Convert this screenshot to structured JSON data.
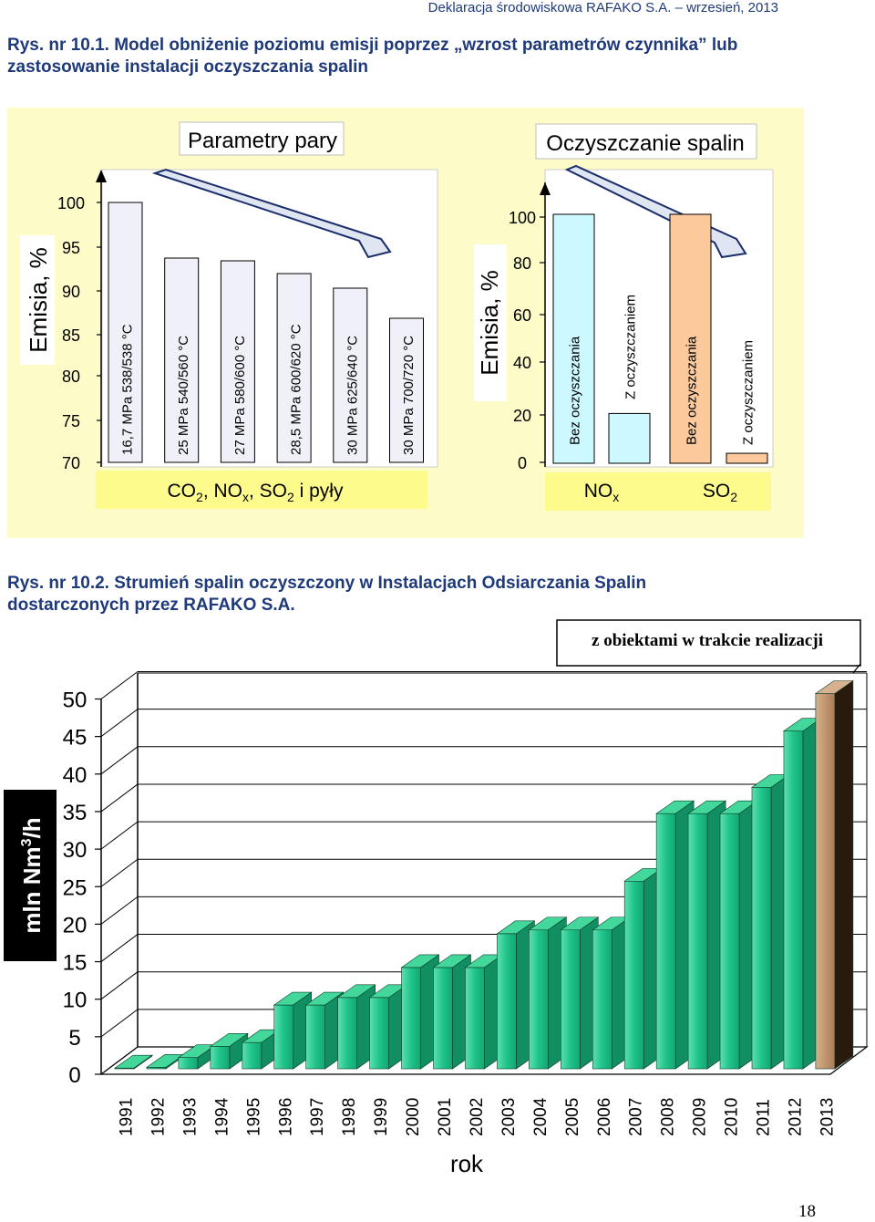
{
  "header": {
    "text": "Deklaracja środowiskowa RAFAKO S.A.  – wrzesień, 2013"
  },
  "figure1": {
    "caption_line1": "Rys. nr 10.1. Model obniżenie poziomu emisji poprzez „wzrost parametrów czynnika” lub",
    "caption_line2": "zastosowanie instalacji oczyszczania spalin",
    "left_title": "Parametry pary",
    "right_title": "Oczyszczanie spalin",
    "left_ylabel": "Emisia, %",
    "right_ylabel": "Emisia, %",
    "left_bottom_label": "CO2, NOx, SO2 i pyły",
    "right_group_labels": [
      "NOx",
      "SO2"
    ],
    "colors": {
      "panel": "#fdfbc8",
      "left_bar": "#eff0f8",
      "right_bar_a": "#ccf8ff",
      "right_bar_b": "#fcc99c",
      "label_band": "#fdfb8c"
    }
  },
  "chart_data": [
    {
      "type": "bar",
      "ylabel": "Emisia, %",
      "ylim": [
        70,
        100
      ],
      "yticks": [
        "100",
        "95",
        "90",
        "85",
        "80",
        "75",
        "70"
      ],
      "categories": [
        "16,7 MPa 538/538 °C",
        "25 MPa 540/560 °C",
        "27 MPa 580/600 °C",
        "28,5 MPa 600/620 °C",
        "30 MPa 625/640 °C",
        "30 MPa 700/720 °C"
      ],
      "values": [
        100,
        94,
        92,
        90,
        88.5,
        86
      ]
    },
    {
      "type": "bar",
      "ylabel": "Emisia, %",
      "ylim": [
        0,
        100
      ],
      "yticks": [
        "100",
        "80",
        "60",
        "40",
        "20",
        "0"
      ],
      "categories": [
        "Bez oczyszczania",
        "Z oczyszczaniem",
        "Bez oczyszczania",
        "Z oczyszczaniem"
      ],
      "groups": [
        "NOx",
        "NOx",
        "SO2",
        "SO2"
      ],
      "values": [
        100,
        20,
        100,
        4
      ]
    },
    {
      "type": "bar",
      "title": "Rys. nr 10.2. Strumień spalin oczyszczony w Instalacjach Odsiarczania Spalin dostarczonych przez RAFAKO S.A.",
      "xlabel": "rok",
      "ylabel": "mln Nm3/h",
      "ylim": [
        0,
        50
      ],
      "yticks": [
        "50",
        "45",
        "40",
        "35",
        "30",
        "25",
        "20",
        "15",
        "10",
        "5",
        "0"
      ],
      "categories": [
        "1991",
        "1992",
        "1993",
        "1994",
        "1995",
        "1996",
        "1997",
        "1998",
        "1999",
        "2000",
        "2001",
        "2002",
        "2003",
        "2004",
        "2005",
        "2006",
        "2007",
        "2008",
        "2009",
        "2010",
        "2011",
        "2012",
        "2013"
      ],
      "values": [
        0.1,
        0.2,
        1.5,
        3,
        3.5,
        8.5,
        8.5,
        9.5,
        9.5,
        13.5,
        13.5,
        13.5,
        18,
        18.5,
        18.5,
        18.5,
        25,
        34,
        34,
        34,
        37.5,
        45,
        50
      ],
      "annotation": "z obiektami w trakcie realizacji",
      "colors": {
        "bar": "#1fc48a",
        "bar_top": "#44d79b",
        "bar_side": "#128f62",
        "last_bar": "#c2956e",
        "last_top": "#d8b290",
        "last_side": "#2a1a0d"
      }
    }
  ],
  "page_number": "18"
}
